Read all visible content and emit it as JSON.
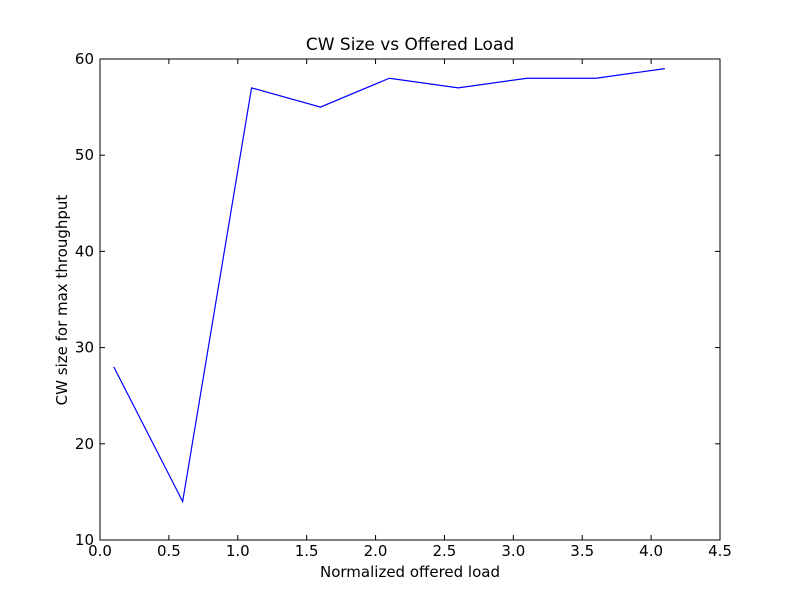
{
  "chart_data": {
    "type": "line",
    "title": "CW Size vs Offered Load",
    "xlabel": "Normalized offered load",
    "ylabel": "CW size for max throughput",
    "x": [
      0.1,
      0.6,
      1.1,
      1.6,
      2.1,
      2.6,
      3.1,
      3.6,
      4.1
    ],
    "series": [
      {
        "color": "#0000ff",
        "values": [
          28,
          14,
          57,
          55,
          58,
          57,
          58,
          58,
          59
        ]
      }
    ],
    "xlim": [
      0,
      4.5
    ],
    "ylim": [
      10,
      60
    ],
    "xticks": [
      {
        "value": 0,
        "label": "0.0"
      },
      0.5,
      {
        "value": 1,
        "label": "1.0"
      },
      1.5,
      {
        "value": 2,
        "label": "2.0"
      },
      2.5,
      {
        "value": 3,
        "label": "3.0"
      },
      3.5,
      {
        "value": 4,
        "label": "4.0"
      },
      4.5
    ],
    "yticks": [
      10,
      20,
      30,
      40,
      50,
      60
    ],
    "grid": false
  }
}
